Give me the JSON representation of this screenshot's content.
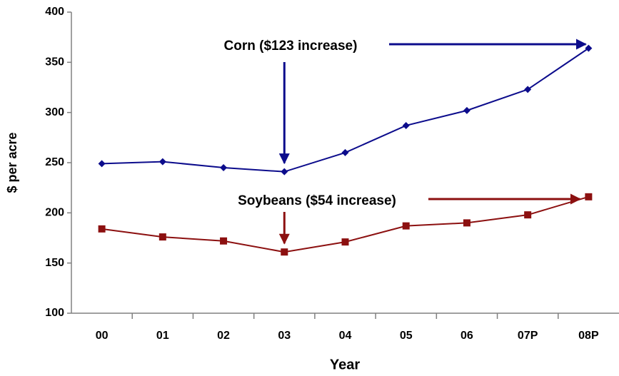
{
  "chart_data": {
    "type": "line",
    "categories": [
      "00",
      "01",
      "02",
      "03",
      "04",
      "05",
      "06",
      "07P",
      "08P"
    ],
    "series": [
      {
        "name": "Corn",
        "color": "#0c0c8c",
        "marker": "diamond",
        "values": [
          249,
          251,
          245,
          241,
          260,
          287,
          302,
          323,
          364
        ]
      },
      {
        "name": "Soybeans",
        "color": "#8c1010",
        "marker": "square",
        "values": [
          184,
          176,
          172,
          161,
          171,
          187,
          190,
          198,
          216
        ]
      }
    ],
    "annotations": [
      "Corn ($123 increase)",
      "Soybeans ($54 increase)"
    ],
    "xlabel": "Year",
    "ylabel": "$ per acre",
    "ylim": [
      100,
      400
    ],
    "yticks": [
      100,
      150,
      200,
      250,
      300,
      350,
      400
    ],
    "grid": false
  }
}
